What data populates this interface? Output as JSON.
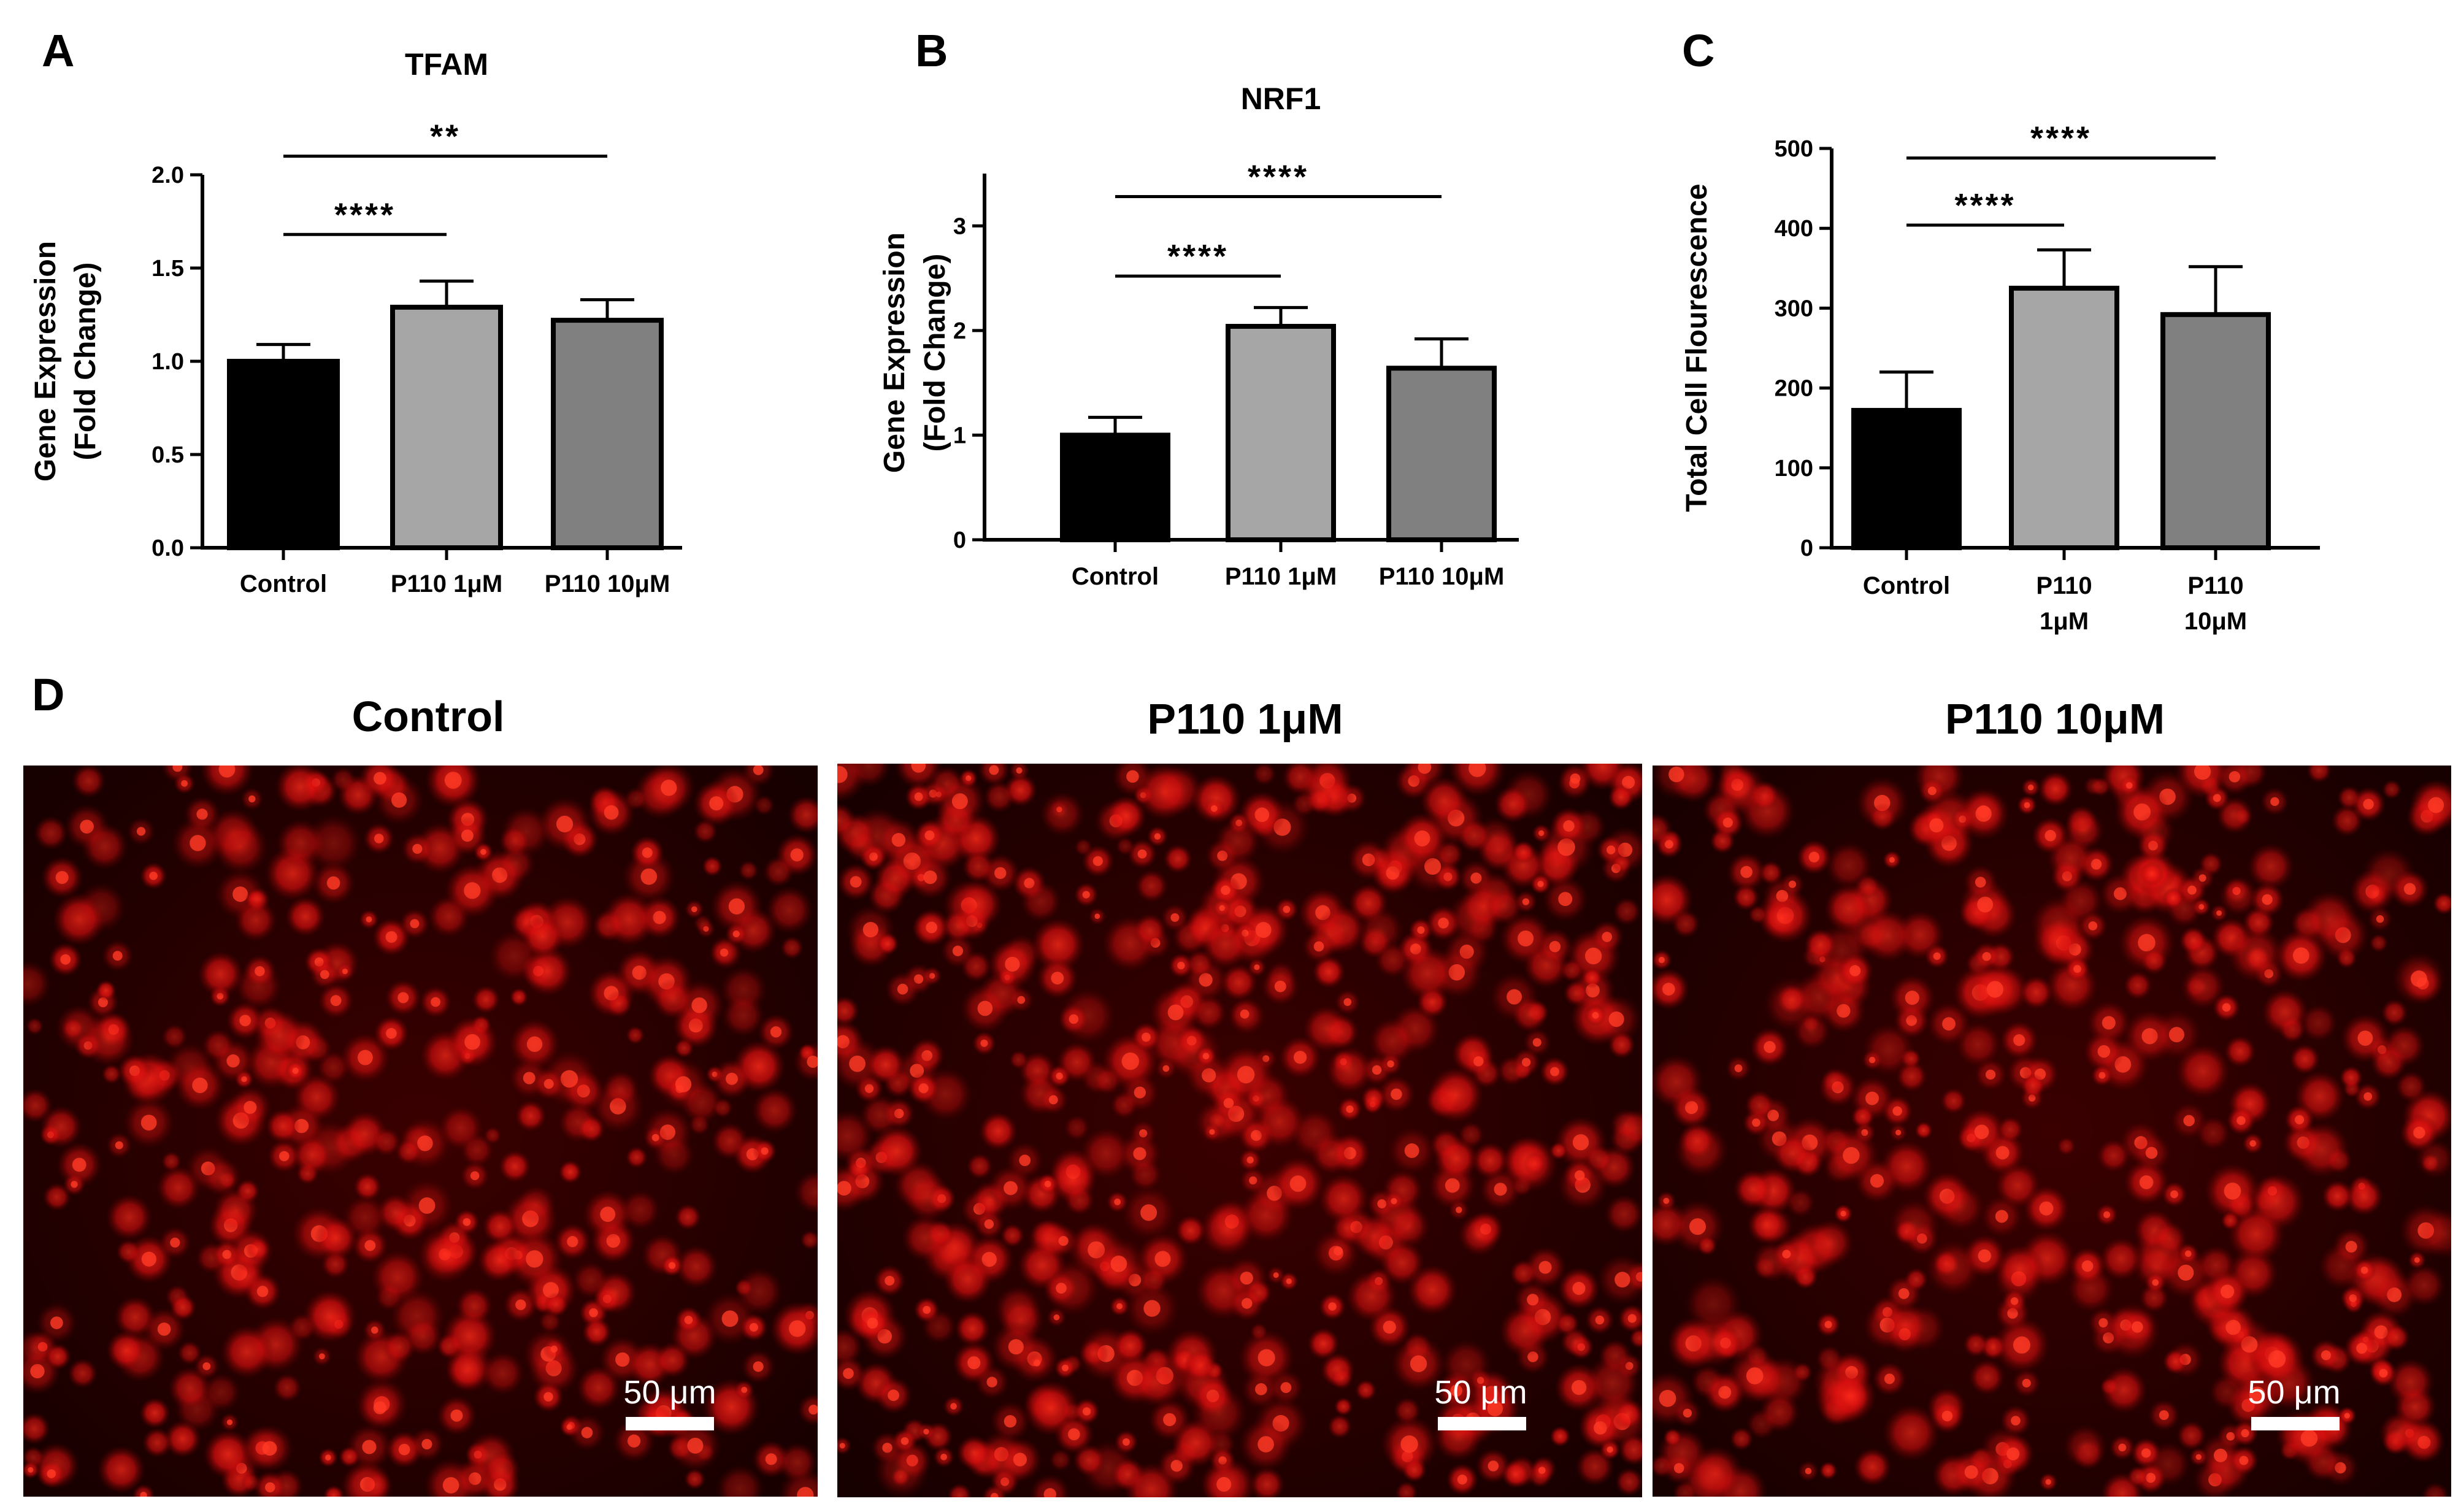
{
  "chart_data": [
    {
      "type": "bar",
      "panel": "A",
      "title": "TFAM",
      "ylabel": [
        "Gene Expression",
        "(Fold Change)"
      ],
      "categories": [
        [
          "Control"
        ],
        [
          "P110 1μM"
        ],
        [
          "P110 10μM"
        ]
      ],
      "values": [
        1.0,
        1.29,
        1.22
      ],
      "errors": [
        0.09,
        0.14,
        0.11
      ],
      "colors": [
        "#000000",
        "#a6a6a6",
        "#808080"
      ],
      "ylim": [
        0,
        2.0
      ],
      "yticks": [
        0.0,
        0.5,
        1.0,
        1.5,
        2.0
      ],
      "ytick_labels": [
        "0.0",
        "0.5",
        "1.0",
        "1.5",
        "2.0"
      ],
      "significance": [
        {
          "from": 0,
          "to": 1,
          "y": 1.68,
          "label": "****"
        },
        {
          "from": 0,
          "to": 2,
          "y": 2.1,
          "label": "**"
        }
      ]
    },
    {
      "type": "bar",
      "panel": "B",
      "title": "NRF1",
      "ylabel": [
        "Gene Expression",
        "(Fold Change)"
      ],
      "categories": [
        [
          "Control"
        ],
        [
          "P110 1μM"
        ],
        [
          "P110 10μM"
        ]
      ],
      "values": [
        1.0,
        2.04,
        1.64
      ],
      "errors": [
        0.17,
        0.18,
        0.28
      ],
      "colors": [
        "#000000",
        "#a6a6a6",
        "#808080"
      ],
      "ylim": [
        0,
        3.5
      ],
      "yticks": [
        0,
        1,
        2,
        3
      ],
      "ytick_labels": [
        "0",
        "1",
        "2",
        "3"
      ],
      "significance": [
        {
          "from": 0,
          "to": 1,
          "y": 2.52,
          "label": "****"
        },
        {
          "from": 0,
          "to": 2,
          "y": 3.28,
          "label": "****"
        }
      ]
    },
    {
      "type": "bar",
      "panel": "C",
      "title": "",
      "ylabel": [
        "Total Cell Flourescence"
      ],
      "categories": [
        [
          "Control"
        ],
        [
          "P110",
          "1μM"
        ],
        [
          "P110",
          "10μM"
        ]
      ],
      "values": [
        172,
        325,
        292
      ],
      "errors": [
        48,
        48,
        60
      ],
      "colors": [
        "#000000",
        "#a6a6a6",
        "#808080"
      ],
      "ylim": [
        0,
        500
      ],
      "yticks": [
        0,
        100,
        200,
        300,
        400,
        500
      ],
      "ytick_labels": [
        "0",
        "100",
        "200",
        "300",
        "400",
        "500"
      ],
      "significance": [
        {
          "from": 0,
          "to": 1,
          "y": 404,
          "label": "****"
        },
        {
          "from": 0,
          "to": 2,
          "y": 488,
          "label": "****"
        }
      ]
    }
  ],
  "panel_d": {
    "letter": "D",
    "images": [
      {
        "title": "Control",
        "scale_bar": "50 μm",
        "icon": "fluorescence-micrograph-icon",
        "density": 380,
        "seed": 11
      },
      {
        "title": "P110 1μM",
        "scale_bar": "50 μm",
        "icon": "fluorescence-micrograph-icon",
        "density": 520,
        "seed": 23
      },
      {
        "title": "P110 10μM",
        "scale_bar": "50 μm",
        "icon": "fluorescence-micrograph-icon",
        "density": 440,
        "seed": 37
      }
    ]
  }
}
